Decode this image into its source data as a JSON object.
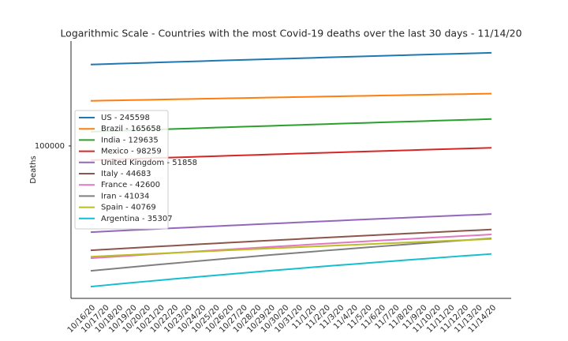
{
  "chart_data": {
    "type": "line",
    "title": "Logarithmic Scale - Countries with the most Covid-19 deaths over the last 30 days - 11/14/20",
    "ylabel": "Deaths",
    "yscale": "log",
    "ylim": [
      23000,
      275000
    ],
    "yticks": [
      100000
    ],
    "grid": false,
    "legend": "center left",
    "categories": [
      "10/16/20",
      "10/17/20",
      "10/18/20",
      "10/19/20",
      "10/20/20",
      "10/21/20",
      "10/22/20",
      "10/23/20",
      "10/24/20",
      "10/25/20",
      "10/26/20",
      "10/27/20",
      "10/28/20",
      "10/29/20",
      "10/30/20",
      "10/31/20",
      "11/1/20",
      "11/2/20",
      "11/3/20",
      "11/4/20",
      "11/5/20",
      "11/6/20",
      "11/7/20",
      "11/8/20",
      "11/9/20",
      "11/10/20",
      "11/11/20",
      "11/12/20",
      "11/13/20",
      "11/14/20"
    ],
    "series": [
      {
        "name": "US - 245598",
        "color": "#1f77b4",
        "values": [
          219300,
          220207,
          221114,
          222021,
          222928,
          223835,
          224742,
          225649,
          226556,
          227463,
          228370,
          229277,
          230184,
          231091,
          231998,
          232905,
          233812,
          234719,
          235626,
          236533,
          237440,
          238347,
          239254,
          240161,
          241068,
          241975,
          242882,
          243789,
          244696,
          245598
        ]
      },
      {
        "name": "Brazil - 165658",
        "color": "#ff7f0e",
        "values": [
          154500,
          154885,
          155270,
          155655,
          156040,
          156425,
          156810,
          157195,
          157580,
          157965,
          158350,
          158735,
          159120,
          159505,
          159890,
          160275,
          160660,
          161045,
          161430,
          161815,
          162200,
          162585,
          162970,
          163355,
          163740,
          164125,
          164510,
          164895,
          165280,
          165658
        ]
      },
      {
        "name": "India - 129635",
        "color": "#2ca02c",
        "values": [
          114700,
          115215,
          115730,
          116245,
          116760,
          117275,
          117790,
          118305,
          118820,
          119335,
          119850,
          120365,
          120880,
          121395,
          121910,
          122425,
          122940,
          123455,
          123970,
          124485,
          125000,
          125515,
          126030,
          126545,
          127060,
          127575,
          128090,
          128605,
          129120,
          129635
        ]
      },
      {
        "name": "Mexico - 98259",
        "color": "#d62728",
        "values": [
          87200,
          87581,
          87962,
          88343,
          88724,
          89105,
          89486,
          89867,
          90248,
          90629,
          91010,
          91391,
          91772,
          92153,
          92534,
          92915,
          93296,
          93677,
          94058,
          94439,
          94820,
          95201,
          95582,
          95963,
          96344,
          96725,
          97106,
          97487,
          97868,
          98259
        ]
      },
      {
        "name": "United Kingdom - 51858",
        "color": "#9467bd",
        "values": [
          43550,
          43836,
          44122,
          44408,
          44694,
          44980,
          45266,
          45552,
          45838,
          46124,
          46410,
          46696,
          46982,
          47268,
          47554,
          47840,
          48126,
          48412,
          48698,
          48984,
          49270,
          49556,
          49842,
          50128,
          50414,
          50700,
          50986,
          51272,
          51558,
          51858
        ]
      },
      {
        "name": "Italy - 44683",
        "color": "#8c564b",
        "values": [
          36560,
          36840,
          37120,
          37400,
          37680,
          37960,
          38240,
          38520,
          38800,
          39080,
          39360,
          39640,
          39920,
          40200,
          40480,
          40760,
          41040,
          41320,
          41600,
          41880,
          42160,
          42440,
          42720,
          43000,
          43280,
          43560,
          43840,
          44120,
          44400,
          44683
        ]
      },
      {
        "name": "France - 42600",
        "color": "#e377c2",
        "values": [
          33870,
          34171,
          34472,
          34773,
          35074,
          35375,
          35676,
          35977,
          36278,
          36579,
          36880,
          37181,
          37482,
          37783,
          38084,
          38385,
          38686,
          38987,
          39288,
          39589,
          39890,
          40191,
          40492,
          40793,
          41094,
          41395,
          41696,
          41997,
          42298,
          42600
        ]
      },
      {
        "name": "Iran - 41034",
        "color": "#7f7f7f",
        "values": [
          29990,
          30371,
          30752,
          31133,
          31514,
          31895,
          32276,
          32657,
          33038,
          33419,
          33800,
          34181,
          34562,
          34943,
          35324,
          35705,
          36086,
          36467,
          36848,
          37229,
          37610,
          37991,
          38372,
          38753,
          39134,
          39515,
          39896,
          40277,
          40658,
          41034
        ]
      },
      {
        "name": "Spain - 40769",
        "color": "#bcbd22",
        "values": [
          34370,
          34591,
          34812,
          35033,
          35254,
          35475,
          35696,
          35917,
          36138,
          36359,
          36580,
          36801,
          37022,
          37243,
          37464,
          37685,
          37906,
          38127,
          38348,
          38569,
          38790,
          39011,
          39232,
          39453,
          39674,
          39895,
          40116,
          40337,
          40558,
          40769
        ]
      },
      {
        "name": "Argentina - 35307",
        "color": "#17becf",
        "values": [
          25760,
          26089,
          26418,
          26747,
          27076,
          27405,
          27734,
          28063,
          28392,
          28721,
          29050,
          29379,
          29708,
          30037,
          30366,
          30695,
          31024,
          31353,
          31682,
          32011,
          32340,
          32669,
          32998,
          33327,
          33656,
          33985,
          34314,
          34643,
          34972,
          35307
        ]
      }
    ]
  }
}
